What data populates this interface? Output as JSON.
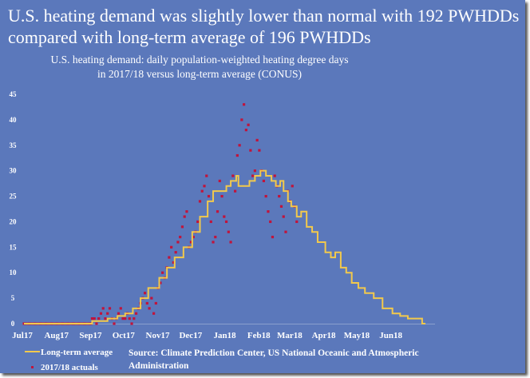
{
  "chart_data": {
    "type": "line",
    "title": "U.S. heating demand was slightly lower than normal with 192 PWHDDs compared with long-term average of 196 PWHDDs",
    "subtitle_lines": [
      "U.S. heating demand: daily population-weighted heating degree days",
      "in 2017/18 versus long-term average (CONUS)"
    ],
    "xlabel": "",
    "ylabel": "",
    "ylim": [
      0,
      45
    ],
    "yticks": [
      "0",
      "5",
      "10",
      "15",
      "20",
      "25",
      "30",
      "35",
      "40",
      "45"
    ],
    "xticks": [
      "Jul 17",
      "Aug 17",
      "Sep 17",
      "Oct 17",
      "Nov 17",
      "Dec 17",
      "Jan 18",
      "Feb 18",
      "Mar 18",
      "Apr 18",
      "May 18",
      "Jun 18"
    ],
    "x_unit": "days since 1 Jul 2017",
    "xlim": [
      0,
      365
    ],
    "grid": false,
    "legend_position": "bottom-left",
    "series": [
      {
        "name": "Long-term average",
        "color": "#f2c94c",
        "kind": "line",
        "points": [
          [
            0,
            0
          ],
          [
            61,
            0
          ],
          [
            62,
            0.5
          ],
          [
            70,
            0.5
          ],
          [
            76,
            1
          ],
          [
            85,
            1.5
          ],
          [
            92,
            2
          ],
          [
            99,
            3
          ],
          [
            106,
            5
          ],
          [
            113,
            7
          ],
          [
            123,
            9
          ],
          [
            130,
            11
          ],
          [
            137,
            13
          ],
          [
            145,
            15
          ],
          [
            153,
            18
          ],
          [
            160,
            21
          ],
          [
            167,
            24
          ],
          [
            172,
            26
          ],
          [
            178,
            26
          ],
          [
            184,
            27
          ],
          [
            188,
            28
          ],
          [
            191,
            28
          ],
          [
            193,
            29
          ],
          [
            195,
            27
          ],
          [
            200,
            27
          ],
          [
            205,
            28
          ],
          [
            210,
            29
          ],
          [
            215,
            30
          ],
          [
            220,
            29
          ],
          [
            225,
            28
          ],
          [
            229,
            27
          ],
          [
            233,
            28
          ],
          [
            236,
            26
          ],
          [
            240,
            24
          ],
          [
            243,
            23
          ],
          [
            248,
            21
          ],
          [
            252,
            22
          ],
          [
            257,
            19
          ],
          [
            262,
            18
          ],
          [
            267,
            16
          ],
          [
            274,
            14
          ],
          [
            279,
            13
          ],
          [
            283,
            14
          ],
          [
            288,
            11
          ],
          [
            293,
            10
          ],
          [
            298,
            8
          ],
          [
            304,
            7
          ],
          [
            310,
            6
          ],
          [
            318,
            5
          ],
          [
            326,
            3
          ],
          [
            335,
            2
          ],
          [
            342,
            1.5
          ],
          [
            349,
            1
          ],
          [
            355,
            1
          ],
          [
            362,
            0
          ],
          [
            365,
            0
          ]
        ]
      },
      {
        "name": "2017/18 actuals",
        "color": "#c0143c",
        "kind": "scatter",
        "points": [
          [
            0,
            0
          ],
          [
            5,
            0
          ],
          [
            10,
            0
          ],
          [
            15,
            0
          ],
          [
            20,
            0
          ],
          [
            25,
            0
          ],
          [
            30,
            0
          ],
          [
            35,
            0
          ],
          [
            40,
            0
          ],
          [
            45,
            0
          ],
          [
            50,
            0
          ],
          [
            55,
            0
          ],
          [
            60,
            0
          ],
          [
            62,
            1
          ],
          [
            64,
            1
          ],
          [
            66,
            0
          ],
          [
            68,
            1
          ],
          [
            70,
            2
          ],
          [
            72,
            3
          ],
          [
            74,
            1
          ],
          [
            76,
            2
          ],
          [
            78,
            3
          ],
          [
            80,
            1
          ],
          [
            82,
            0
          ],
          [
            84,
            1
          ],
          [
            86,
            2
          ],
          [
            88,
            3
          ],
          [
            90,
            1
          ],
          [
            92,
            1
          ],
          [
            94,
            2
          ],
          [
            96,
            1
          ],
          [
            98,
            0
          ],
          [
            100,
            1
          ],
          [
            102,
            2
          ],
          [
            104,
            3
          ],
          [
            106,
            4
          ],
          [
            108,
            5
          ],
          [
            110,
            6
          ],
          [
            112,
            4
          ],
          [
            114,
            3
          ],
          [
            116,
            5
          ],
          [
            118,
            2
          ],
          [
            120,
            4
          ],
          [
            122,
            7
          ],
          [
            124,
            8
          ],
          [
            126,
            10
          ],
          [
            128,
            9
          ],
          [
            130,
            11
          ],
          [
            132,
            13
          ],
          [
            134,
            15
          ],
          [
            136,
            12
          ],
          [
            138,
            14
          ],
          [
            140,
            16
          ],
          [
            142,
            17
          ],
          [
            144,
            19
          ],
          [
            146,
            21
          ],
          [
            148,
            22
          ],
          [
            150,
            15
          ],
          [
            152,
            16
          ],
          [
            154,
            17
          ],
          [
            156,
            18
          ],
          [
            158,
            20
          ],
          [
            160,
            24
          ],
          [
            162,
            26
          ],
          [
            164,
            27
          ],
          [
            166,
            29
          ],
          [
            168,
            25
          ],
          [
            170,
            20
          ],
          [
            172,
            16
          ],
          [
            174,
            17
          ],
          [
            176,
            22
          ],
          [
            178,
            28
          ],
          [
            180,
            25
          ],
          [
            182,
            21
          ],
          [
            184,
            20
          ],
          [
            186,
            18
          ],
          [
            188,
            16
          ],
          [
            190,
            29
          ],
          [
            192,
            26
          ],
          [
            194,
            33
          ],
          [
            196,
            35
          ],
          [
            198,
            40
          ],
          [
            200,
            43
          ],
          [
            202,
            38
          ],
          [
            204,
            39
          ],
          [
            206,
            34
          ],
          [
            208,
            29
          ],
          [
            210,
            30
          ],
          [
            212,
            36
          ],
          [
            214,
            34
          ],
          [
            216,
            30
          ],
          [
            218,
            28
          ],
          [
            220,
            25
          ],
          [
            222,
            22
          ],
          [
            224,
            20
          ],
          [
            226,
            17
          ],
          [
            228,
            29
          ],
          [
            230,
            27
          ],
          [
            232,
            25
          ],
          [
            234,
            23
          ],
          [
            236,
            21
          ],
          [
            238,
            18
          ],
          [
            240,
            26
          ],
          [
            242,
            24
          ],
          [
            244,
            27
          ],
          [
            246,
            23
          ],
          [
            248,
            20
          ]
        ]
      }
    ],
    "source_text": [
      "Source: Climate Prediction Center, US National Oceanic and Atmospheric",
      "Administration"
    ]
  }
}
